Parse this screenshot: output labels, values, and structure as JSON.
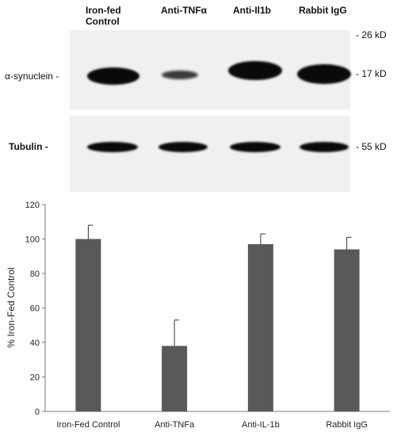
{
  "blot": {
    "lane_headers": [
      {
        "line1": "Iron-fed",
        "line2": "Control"
      },
      {
        "line1": "Anti-TNFα",
        "line2": ""
      },
      {
        "line1": "Anti-Il1b",
        "line2": ""
      },
      {
        "line1": "Rabbit IgG",
        "line2": ""
      }
    ],
    "rows": [
      {
        "label": "α-synuclein -",
        "marker_top": "- 26 kD",
        "marker": "- 17 kD"
      },
      {
        "label": "Tubulin -",
        "marker": "- 55 kD"
      }
    ],
    "band_color": "#0a0a0a",
    "background_color": "#f0f0f0"
  },
  "chart_data": {
    "type": "bar",
    "categories": [
      "Iron-Fed Control",
      "Anti-TNFa",
      "Anti-IL-1b",
      "Rabbit IgG"
    ],
    "values": [
      100,
      38,
      97,
      94
    ],
    "errors": [
      8,
      15,
      6,
      7
    ],
    "ylabel": "% Iron-Fed Control",
    "xlabel": "",
    "ylim": [
      0,
      120
    ],
    "yticks": [
      0,
      20,
      40,
      60,
      80,
      100,
      120
    ],
    "bar_color": "#595959",
    "grid": false,
    "legend": false
  }
}
